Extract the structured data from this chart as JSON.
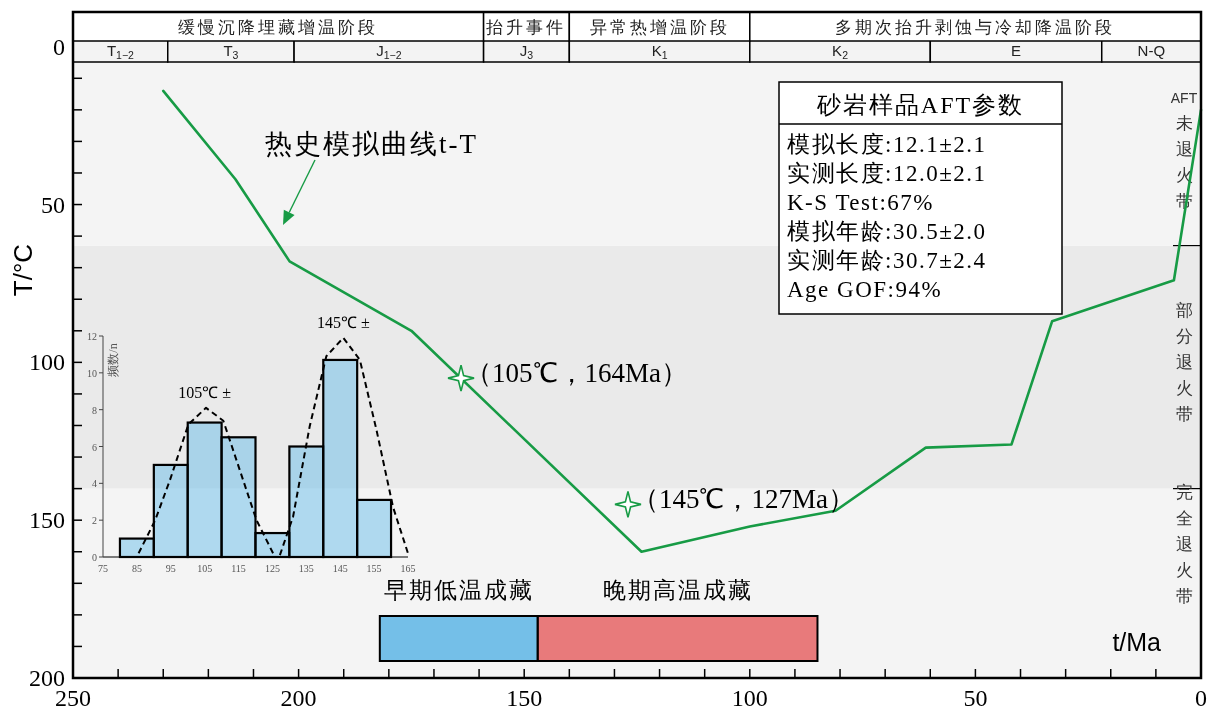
{
  "chart_data": [
    {
      "type": "line",
      "xlabel": "t/Ma",
      "ylabel": "T/°C",
      "xlim": [
        250,
        0
      ],
      "ylim": [
        200,
        -11
      ],
      "xticks": [
        250,
        {
          "value": 240,
          "label": null
        },
        {
          "value": 230,
          "label": null
        },
        {
          "value": 220,
          "label": null
        },
        {
          "value": 210,
          "label": null
        },
        200,
        {
          "value": 190,
          "label": null
        },
        {
          "value": 180,
          "label": null
        },
        {
          "value": 170,
          "label": null
        },
        {
          "value": 160,
          "label": null
        },
        150,
        {
          "value": 140,
          "label": null
        },
        {
          "value": 130,
          "label": null
        },
        {
          "value": 120,
          "label": null
        },
        {
          "value": 110,
          "label": null
        },
        100,
        {
          "value": 90,
          "label": null
        },
        {
          "value": 80,
          "label": null
        },
        {
          "value": 70,
          "label": null
        },
        {
          "value": 60,
          "label": null
        },
        50,
        {
          "value": 40,
          "label": null
        },
        {
          "value": 30,
          "label": null
        },
        {
          "value": 20,
          "label": null
        },
        {
          "value": 10,
          "label": null
        },
        0
      ],
      "yticks": [
        0,
        {
          "value": 10,
          "label": null
        },
        {
          "value": 20,
          "label": null
        },
        {
          "value": 30,
          "label": null
        },
        {
          "value": 40,
          "label": null
        },
        50,
        {
          "value": 60,
          "label": null
        },
        {
          "value": 70,
          "label": null
        },
        {
          "value": 80,
          "label": null
        },
        {
          "value": 90,
          "label": null
        },
        100,
        {
          "value": 110,
          "label": null
        },
        {
          "value": 120,
          "label": null
        },
        {
          "value": 130,
          "label": null
        },
        {
          "value": 140,
          "label": null
        },
        150,
        {
          "value": 160,
          "label": null
        },
        {
          "value": 170,
          "label": null
        },
        {
          "value": 180,
          "label": null
        },
        {
          "value": 190,
          "label": null
        },
        200
      ],
      "series": [
        {
          "type": "line",
          "color": "#179b45",
          "marker": "none",
          "line_style": "solid",
          "x": [
            230,
            214,
            202,
            175,
            124,
            100,
            81,
            61,
            42,
            33,
            6,
            0
          ],
          "values": [
            14,
            42,
            68,
            90,
            160,
            152,
            147,
            127,
            126,
            87,
            74,
            20
          ]
        },
        {
          "type": "scatter",
          "color": "#179b45",
          "marker": "star",
          "x": [
            164,
            127
          ],
          "values": [
            105,
            145
          ],
          "value_labels": [
            "（105℃，164Ma）",
            "（145℃，127Ma）"
          ]
        }
      ],
      "bands": [
        {
          "axis": "x",
          "from": 250,
          "to": 159,
          "label": "缓慢沉降埋藏增温阶段",
          "color": "#ffffff"
        },
        {
          "axis": "x",
          "from": 159,
          "to": 140,
          "label": "抬升事件",
          "color": "#ffffff"
        },
        {
          "axis": "x",
          "from": 140,
          "to": 100,
          "label": "异常热增温阶段",
          "color": "#ffffff"
        },
        {
          "axis": "x",
          "from": 100,
          "to": 0,
          "label": "多期次抬升剥蚀与冷却降温阶段",
          "color": "#ffffff"
        },
        {
          "axis": "x",
          "from": 250,
          "to": 229,
          "label": "T$_{1−2}$",
          "color": "#f3f3f3"
        },
        {
          "axis": "x",
          "from": 229,
          "to": 201,
          "label": "T$_{3}$",
          "color": "#f3f3f3"
        },
        {
          "axis": "x",
          "from": 201,
          "to": 159,
          "label": "J$_{1−2}$",
          "color": "#f3f3f3"
        },
        {
          "axis": "x",
          "from": 159,
          "to": 140,
          "label": "J$_{3}$",
          "color": "#f3f3f3"
        },
        {
          "axis": "x",
          "from": 140,
          "to": 100,
          "label": "K$_{1}$",
          "color": "#f3f3f3"
        },
        {
          "axis": "x",
          "from": 100,
          "to": 60,
          "label": "K$_{2}$",
          "color": "#f3f3f3"
        },
        {
          "axis": "x",
          "from": 60,
          "to": 22,
          "label": "E",
          "color": "#f3f3f3"
        },
        {
          "axis": "x",
          "from": 22,
          "to": 0,
          "label": "N-Q",
          "color": "#f3f3f3"
        },
        {
          "axis": "y",
          "from": 0,
          "to": 63,
          "label": "AFT未退火带",
          "color": "#f4f4f4"
        },
        {
          "axis": "y",
          "from": 63,
          "to": 140,
          "label": "部分退火带",
          "color": "#eaeaea"
        },
        {
          "axis": "y",
          "from": 140,
          "to": 200,
          "label": "完全退火带",
          "color": "#f4f4f4"
        },
        {
          "axis": "x",
          "from": 182,
          "to": 147,
          "label": "早期低温成藏",
          "color": "#1e9be0"
        },
        {
          "axis": "x",
          "from": 147,
          "to": 85,
          "label": "晚期高温成藏",
          "color": "#e0282a"
        }
      ],
      "annotations": [
        "砂岩样品AFT参数",
        "模拟长度:12.1±2.1",
        "实测长度:12.0±2.1",
        "K-S Test:67%",
        "模拟年龄:30.5±2.0",
        "实测年龄:30.7±2.4",
        "Age GOF:94%",
        "热史模拟曲线t-T"
      ]
    },
    {
      "type": "histogram",
      "ylabel": "频数/n",
      "bins": [
        80,
        90,
        100,
        110,
        120,
        130,
        140,
        150,
        160
      ],
      "values": [
        1,
        5,
        7.3,
        6.5,
        1.3,
        6.0,
        10.7,
        3.1
      ],
      "color": "#5bb8e8",
      "xlim": [
        75,
        165
      ],
      "xticks": [
        75,
        85,
        95,
        105,
        115,
        125,
        135,
        145,
        155,
        165
      ],
      "ylim": [
        0,
        12
      ],
      "yticks": [
        0,
        2,
        4,
        6,
        8,
        10,
        12
      ],
      "series": [
        {
          "type": "line",
          "color": "#000000",
          "line_style": "dashed",
          "x": [
            85.5,
            90.4,
            94.8,
            100.2,
            105.4,
            110.5,
            115.4,
            120.3,
            125.2
          ],
          "values": [
            0.2,
            2.0,
            4.2,
            7.2,
            8.1,
            7.4,
            4.7,
            2.0,
            0.2
          ]
        },
        {
          "type": "line",
          "color": "#000000",
          "line_style": "dashed",
          "x": [
            127.2,
            131.1,
            136,
            140.9,
            145.9,
            150.8,
            155.7,
            160.6,
            165
          ],
          "values": [
            0.1,
            2.2,
            7.1,
            10.9,
            11.9,
            10.7,
            6.9,
            2.7,
            0.2
          ]
        }
      ],
      "annotations": [
        {
          "text": "105℃ ±",
          "x": 105,
          "y": 8.1
        },
        {
          "text": "145℃ ±",
          "x": 145.9,
          "y": 11.9
        }
      ]
    }
  ]
}
